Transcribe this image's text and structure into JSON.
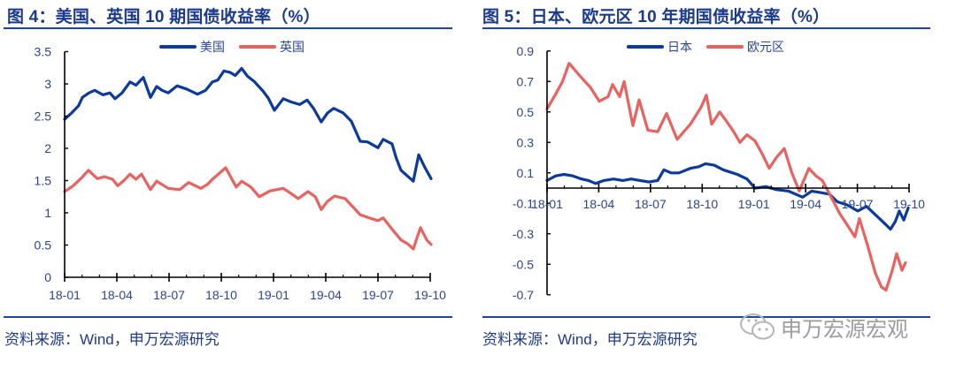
{
  "figures": [
    {
      "title": "图 4：美国、英国 10 期国债收益率（%）",
      "legend": [
        {
          "label": "美国",
          "color": "#0B3A9C"
        },
        {
          "label": "英国",
          "color": "#E8625F"
        }
      ],
      "source": "资料来源：Wind，申万宏源研究"
    },
    {
      "title": "图 5：日本、欧元区 10 年期国债收益率（%）",
      "legend": [
        {
          "label": "日本",
          "color": "#0B3A9C"
        },
        {
          "label": "欧元区",
          "color": "#E8625F"
        }
      ],
      "source": "资料来源：Wind，申万宏源研究"
    }
  ],
  "watermark": {
    "text": "申万宏源宏观",
    "icon": "wechat-icon"
  },
  "colors": {
    "title": "#1B3A8E",
    "rule": "#1B46A0",
    "axis_text": "#2A4597",
    "series_blue": "#0B3A9C",
    "series_red": "#E8625F"
  },
  "chart_data": [
    {
      "type": "line",
      "title": "美国、英国 10 期国债收益率（%）",
      "xlabel": "",
      "ylabel": "",
      "x_unit": "months from 18-01",
      "x_range": [
        0,
        21
      ],
      "x_ticks": [
        {
          "at": 0,
          "label": "18-01"
        },
        {
          "at": 3,
          "label": "18-04"
        },
        {
          "at": 6,
          "label": "18-07"
        },
        {
          "at": 9,
          "label": "18-10"
        },
        {
          "at": 12,
          "label": "19-01"
        },
        {
          "at": 15,
          "label": "19-04"
        },
        {
          "at": 18,
          "label": "19-07"
        },
        {
          "at": 21,
          "label": "19-10"
        }
      ],
      "y_ticks": [
        "0",
        "0.5",
        "1",
        "1.5",
        "2",
        "2.5",
        "3",
        "3.5"
      ],
      "ylim": [
        0,
        3.5
      ],
      "legend_position": "top",
      "grid": false,
      "series": [
        {
          "name": "美国",
          "color": "#0B3A9C",
          "points": [
            [
              0,
              2.45
            ],
            [
              0.4,
              2.55
            ],
            [
              0.8,
              2.66
            ],
            [
              1.02,
              2.79
            ],
            [
              1.4,
              2.86
            ],
            [
              1.73,
              2.9
            ],
            [
              2.2,
              2.83
            ],
            [
              2.6,
              2.86
            ],
            [
              2.9,
              2.77
            ],
            [
              3.3,
              2.86
            ],
            [
              3.76,
              3.03
            ],
            [
              4.1,
              2.98
            ],
            [
              4.52,
              3.1
            ],
            [
              4.93,
              2.79
            ],
            [
              5.29,
              2.96
            ],
            [
              5.6,
              2.9
            ],
            [
              5.95,
              2.86
            ],
            [
              6.46,
              2.97
            ],
            [
              7.0,
              2.92
            ],
            [
              7.63,
              2.84
            ],
            [
              8.1,
              2.9
            ],
            [
              8.49,
              3.03
            ],
            [
              8.8,
              3.06
            ],
            [
              9.15,
              3.2
            ],
            [
              9.5,
              3.18
            ],
            [
              9.8,
              3.13
            ],
            [
              10.17,
              3.24
            ],
            [
              10.5,
              3.12
            ],
            [
              10.88,
              3.04
            ],
            [
              11.39,
              2.89
            ],
            [
              11.7,
              2.78
            ],
            [
              12.05,
              2.59
            ],
            [
              12.56,
              2.77
            ],
            [
              13.0,
              2.72
            ],
            [
              13.5,
              2.68
            ],
            [
              13.93,
              2.75
            ],
            [
              14.3,
              2.62
            ],
            [
              14.74,
              2.41
            ],
            [
              15.1,
              2.55
            ],
            [
              15.46,
              2.62
            ],
            [
              16.0,
              2.55
            ],
            [
              16.47,
              2.42
            ],
            [
              16.98,
              2.11
            ],
            [
              17.4,
              2.1
            ],
            [
              18.0,
              2.01
            ],
            [
              18.3,
              2.14
            ],
            [
              18.81,
              2.07
            ],
            [
              19.05,
              1.85
            ],
            [
              19.32,
              1.66
            ],
            [
              19.7,
              1.57
            ],
            [
              20.03,
              1.49
            ],
            [
              20.34,
              1.9
            ],
            [
              20.7,
              1.7
            ],
            [
              21.05,
              1.53
            ]
          ]
        },
        {
          "name": "英国",
          "color": "#E8625F",
          "points": [
            [
              0,
              1.33
            ],
            [
              0.5,
              1.42
            ],
            [
              1.0,
              1.55
            ],
            [
              1.37,
              1.66
            ],
            [
              1.88,
              1.53
            ],
            [
              2.3,
              1.56
            ],
            [
              2.75,
              1.52
            ],
            [
              3.05,
              1.42
            ],
            [
              3.4,
              1.5
            ],
            [
              3.76,
              1.6
            ],
            [
              4.1,
              1.52
            ],
            [
              4.42,
              1.6
            ],
            [
              4.93,
              1.36
            ],
            [
              5.29,
              1.49
            ],
            [
              5.95,
              1.38
            ],
            [
              6.61,
              1.36
            ],
            [
              7.12,
              1.47
            ],
            [
              7.83,
              1.38
            ],
            [
              8.2,
              1.44
            ],
            [
              8.49,
              1.52
            ],
            [
              9.25,
              1.7
            ],
            [
              9.86,
              1.4
            ],
            [
              10.17,
              1.49
            ],
            [
              10.7,
              1.4
            ],
            [
              11.18,
              1.25
            ],
            [
              11.8,
              1.34
            ],
            [
              12.56,
              1.38
            ],
            [
              13.0,
              1.3
            ],
            [
              13.42,
              1.22
            ],
            [
              13.98,
              1.33
            ],
            [
              14.4,
              1.25
            ],
            [
              14.74,
              1.05
            ],
            [
              15.1,
              1.18
            ],
            [
              15.51,
              1.26
            ],
            [
              16.12,
              1.22
            ],
            [
              16.6,
              1.08
            ],
            [
              16.98,
              0.97
            ],
            [
              17.5,
              0.92
            ],
            [
              18.0,
              0.88
            ],
            [
              18.3,
              0.92
            ],
            [
              18.8,
              0.75
            ],
            [
              19.32,
              0.58
            ],
            [
              19.7,
              0.52
            ],
            [
              20.03,
              0.44
            ],
            [
              20.44,
              0.77
            ],
            [
              20.8,
              0.58
            ],
            [
              21.05,
              0.51
            ]
          ]
        }
      ]
    },
    {
      "type": "line",
      "title": "日本、欧元区 10 年期国债收益率（%）",
      "xlabel": "",
      "ylabel": "",
      "x_unit": "months from 18-01",
      "x_range": [
        0,
        21
      ],
      "x_ticks": [
        {
          "at": 0,
          "label": "18-01"
        },
        {
          "at": 3,
          "label": "18-04"
        },
        {
          "at": 6,
          "label": "18-07"
        },
        {
          "at": 9,
          "label": "18-10"
        },
        {
          "at": 12,
          "label": "19-01"
        },
        {
          "at": 15,
          "label": "19-04"
        },
        {
          "at": 18,
          "label": "19-07"
        },
        {
          "at": 21,
          "label": "19-10"
        }
      ],
      "y_ticks": [
        "-0.7",
        "-0.5",
        "-0.3",
        "-0.1",
        "0.1",
        "0.3",
        "0.5",
        "0.7",
        "0.9"
      ],
      "ylim": [
        -0.7,
        0.9
      ],
      "x_axis_crosses_at": 0,
      "legend_position": "top",
      "grid": false,
      "series": [
        {
          "name": "日本",
          "color": "#0B3A9C",
          "points": [
            [
              0,
              0.05
            ],
            [
              0.5,
              0.08
            ],
            [
              0.98,
              0.09
            ],
            [
              1.5,
              0.08
            ],
            [
              2.0,
              0.06
            ],
            [
              2.4,
              0.05
            ],
            [
              2.82,
              0.03
            ],
            [
              3.3,
              0.05
            ],
            [
              3.85,
              0.06
            ],
            [
              4.4,
              0.05
            ],
            [
              4.88,
              0.06
            ],
            [
              5.4,
              0.05
            ],
            [
              5.9,
              0.04
            ],
            [
              6.42,
              0.05
            ],
            [
              6.78,
              0.12
            ],
            [
              7.2,
              0.1
            ],
            [
              7.65,
              0.1
            ],
            [
              8.32,
              0.13
            ],
            [
              8.8,
              0.14
            ],
            [
              9.19,
              0.16
            ],
            [
              9.7,
              0.15
            ],
            [
              10.22,
              0.12
            ],
            [
              11.04,
              0.09
            ],
            [
              11.6,
              0.06
            ],
            [
              12.06,
              0.0
            ],
            [
              12.7,
              0.01
            ],
            [
              13.29,
              -0.01
            ],
            [
              14.0,
              -0.02
            ],
            [
              14.83,
              -0.06
            ],
            [
              15.35,
              -0.02
            ],
            [
              15.9,
              -0.03
            ],
            [
              16.38,
              -0.04
            ],
            [
              16.84,
              -0.09
            ],
            [
              17.4,
              -0.11
            ],
            [
              18.02,
              -0.15
            ],
            [
              18.53,
              -0.12
            ],
            [
              19.0,
              -0.17
            ],
            [
              19.56,
              -0.23
            ],
            [
              19.92,
              -0.27
            ],
            [
              20.2,
              -0.22
            ],
            [
              20.43,
              -0.15
            ],
            [
              20.69,
              -0.21
            ],
            [
              20.95,
              -0.13
            ]
          ]
        },
        {
          "name": "欧元区",
          "color": "#E8625F",
          "points": [
            [
              0,
              0.52
            ],
            [
              0.46,
              0.61
            ],
            [
              0.9,
              0.7
            ],
            [
              1.28,
              0.82
            ],
            [
              1.8,
              0.75
            ],
            [
              2.2,
              0.7
            ],
            [
              2.52,
              0.66
            ],
            [
              3.03,
              0.57
            ],
            [
              3.54,
              0.6
            ],
            [
              3.8,
              0.68
            ],
            [
              4.21,
              0.6
            ],
            [
              4.47,
              0.7
            ],
            [
              4.98,
              0.41
            ],
            [
              5.34,
              0.58
            ],
            [
              5.85,
              0.38
            ],
            [
              6.42,
              0.37
            ],
            [
              6.93,
              0.49
            ],
            [
              7.55,
              0.32
            ],
            [
              8.32,
              0.42
            ],
            [
              8.93,
              0.53
            ],
            [
              9.24,
              0.61
            ],
            [
              9.55,
              0.42
            ],
            [
              10.01,
              0.5
            ],
            [
              10.4,
              0.44
            ],
            [
              10.83,
              0.37
            ],
            [
              11.19,
              0.3
            ],
            [
              11.6,
              0.35
            ],
            [
              12.06,
              0.31
            ],
            [
              12.5,
              0.22
            ],
            [
              12.88,
              0.13
            ],
            [
              13.3,
              0.2
            ],
            [
              13.76,
              0.26
            ],
            [
              14.2,
              0.1
            ],
            [
              14.63,
              -0.02
            ],
            [
              15.19,
              0.13
            ],
            [
              15.6,
              0.08
            ],
            [
              15.97,
              0.05
            ],
            [
              16.48,
              -0.06
            ],
            [
              16.99,
              -0.17
            ],
            [
              17.4,
              -0.24
            ],
            [
              17.86,
              -0.32
            ],
            [
              18.12,
              -0.2
            ],
            [
              18.6,
              -0.38
            ],
            [
              19.05,
              -0.56
            ],
            [
              19.4,
              -0.65
            ],
            [
              19.66,
              -0.67
            ],
            [
              20.0,
              -0.55
            ],
            [
              20.28,
              -0.43
            ],
            [
              20.59,
              -0.54
            ],
            [
              20.79,
              -0.49
            ]
          ]
        }
      ]
    }
  ]
}
